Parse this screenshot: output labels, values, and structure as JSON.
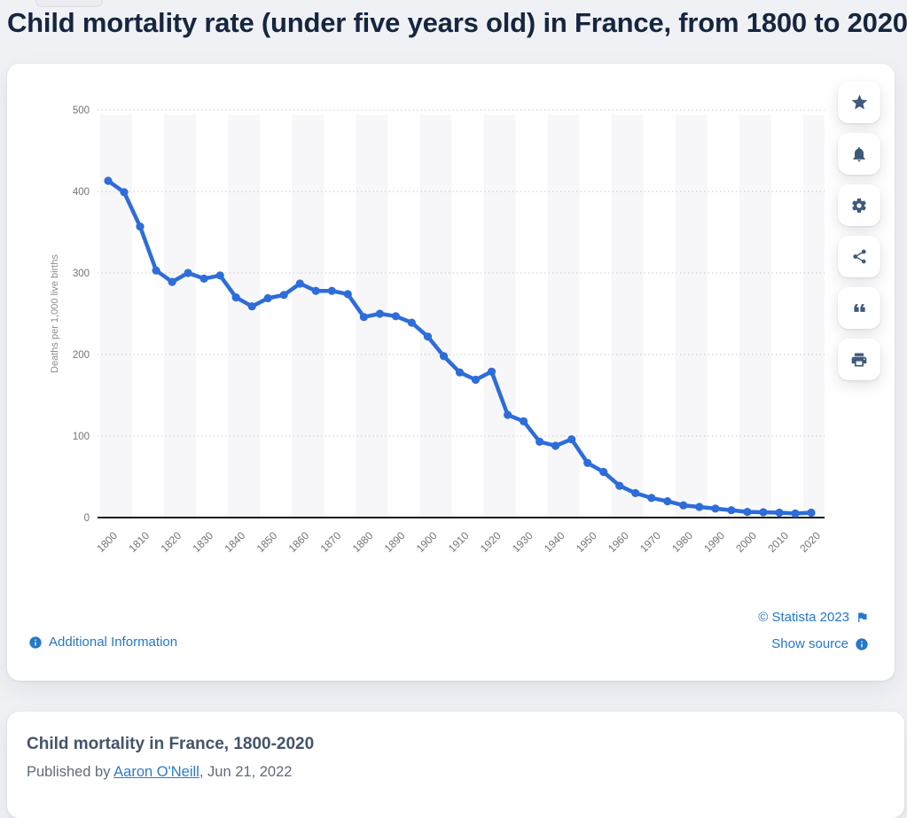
{
  "page": {
    "title": "Child mortality rate (under five years old) in France, from 1800 to 2020"
  },
  "chart_data": {
    "type": "line",
    "title": "Child mortality rate (under five years old) in France, from 1800 to 2020",
    "xlabel": "",
    "ylabel": "Deaths per 1,000 live births",
    "x": [
      1800,
      1805,
      1810,
      1815,
      1820,
      1825,
      1830,
      1835,
      1840,
      1845,
      1850,
      1855,
      1860,
      1865,
      1870,
      1875,
      1880,
      1885,
      1890,
      1895,
      1900,
      1905,
      1910,
      1915,
      1920,
      1925,
      1930,
      1935,
      1940,
      1945,
      1950,
      1955,
      1960,
      1965,
      1970,
      1975,
      1980,
      1985,
      1990,
      1995,
      2000,
      2005,
      2010,
      2015,
      2020
    ],
    "values": [
      413,
      399,
      357,
      303,
      289,
      300,
      293,
      297,
      270,
      259,
      269,
      273,
      287,
      278,
      278,
      274,
      246,
      250,
      247,
      239,
      222,
      198,
      178,
      169,
      179,
      126,
      118,
      93,
      88,
      96,
      67,
      56,
      39,
      30,
      24,
      20,
      15,
      13,
      11,
      9,
      7,
      6.5,
      6,
      5,
      6
    ],
    "yticks": [
      0,
      100,
      200,
      300,
      400,
      500
    ],
    "xtick_labels": [
      "1800",
      "1810",
      "1820",
      "1830",
      "1840",
      "1850",
      "1860",
      "1870",
      "1880",
      "1890",
      "1900",
      "1910",
      "1920",
      "1930",
      "1940",
      "1950",
      "1960",
      "1970",
      "1980",
      "1990",
      "2000",
      "2010",
      "2020"
    ],
    "ylim": [
      0,
      500
    ],
    "grid": "horizontal-dotted",
    "plot_bands": "alternating-decade-columns",
    "legend": "none",
    "line_color": "#2e6dd9",
    "band_color": "#f7f7f9",
    "marker": "circle"
  },
  "chart_links": {
    "additional_info": "Additional Information",
    "copyright": "© Statista 2023",
    "show_source": "Show source"
  },
  "toolbar": {
    "buttons": [
      {
        "icon": "star-icon"
      },
      {
        "icon": "bell-icon"
      },
      {
        "icon": "gear-icon"
      },
      {
        "icon": "share-icon"
      },
      {
        "icon": "quote-icon"
      },
      {
        "icon": "print-icon"
      }
    ]
  },
  "footer_card": {
    "title": "Child mortality in France, 1800-2020",
    "published_prefix": "Published by ",
    "author": "Aaron O'Neill",
    "published_suffix": ", Jun 21, 2022"
  },
  "colors": {
    "accent_blue": "#2478c9",
    "line_blue": "#2e6dd9",
    "icon_navy": "#3e5a7a",
    "title_navy": "#16263f",
    "background": "#eff1f5"
  }
}
